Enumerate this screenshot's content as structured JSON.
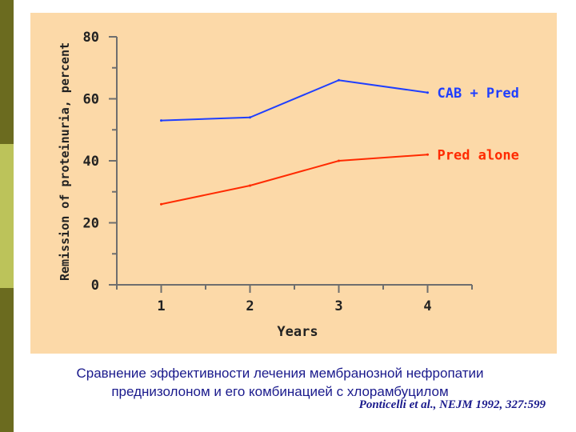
{
  "chart_data": {
    "type": "line",
    "xlabel": "Years",
    "ylabel": "Remission of proteinuria, percent",
    "x": [
      1,
      2,
      3,
      4
    ],
    "ylim": [
      0,
      80
    ],
    "xlim": [
      0.5,
      4.5
    ],
    "yticks": [
      0,
      20,
      40,
      60,
      80
    ],
    "xticks": [
      1,
      2,
      3,
      4
    ],
    "grid": false,
    "series": [
      {
        "name": "CAB + Pred",
        "color": "#1f3fff",
        "points": [
          [
            1,
            53
          ],
          [
            2,
            54
          ],
          [
            3,
            66
          ],
          [
            4,
            62
          ]
        ]
      },
      {
        "name": "Pred alone",
        "color": "#ff2a00",
        "points": [
          [
            1,
            26
          ],
          [
            2,
            32
          ],
          [
            3,
            40
          ],
          [
            4,
            42
          ]
        ]
      }
    ]
  },
  "caption": {
    "line1": "Сравнение эффективности лечения мембранозной нефропатии",
    "line2": "преднизолоном и его комбинацией с хлорамбуцилом",
    "citation": "Ponticelli et al., NEJM 1992, 327:599"
  }
}
